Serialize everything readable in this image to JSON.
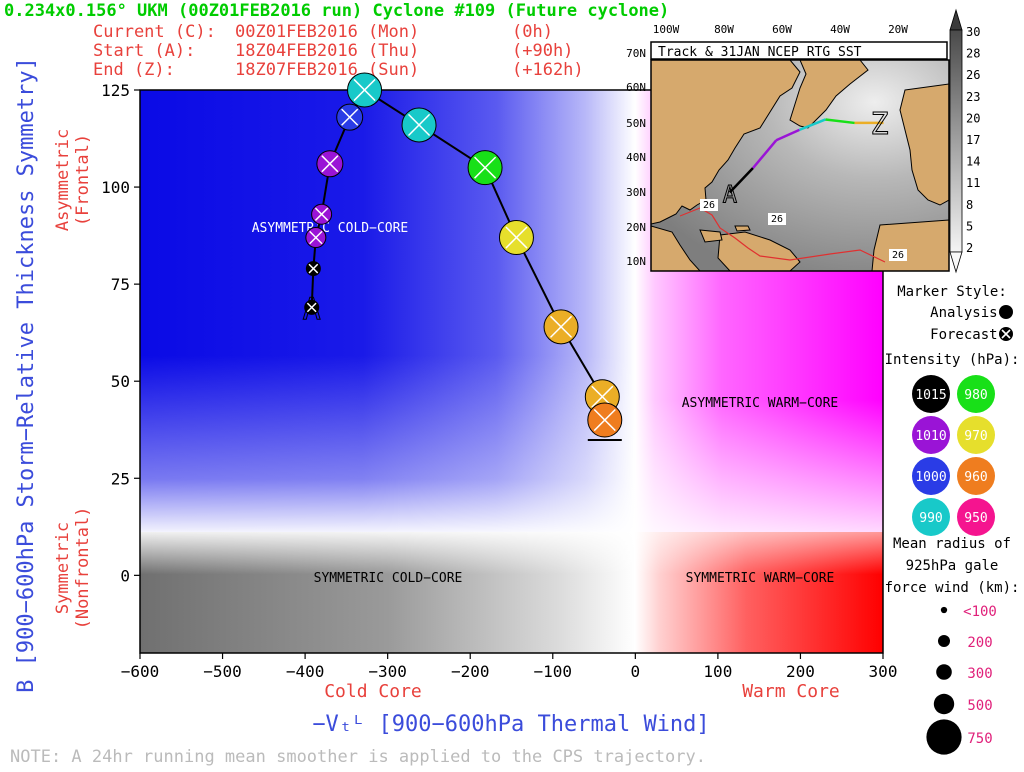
{
  "header": {
    "title": "0.234x0.156° UKM (00Z01FEB2016 run) Cyclone #109 (Future cyclone)",
    "rows": [
      {
        "label": "Current (C):",
        "time": "00Z01FEB2016 (Mon)",
        "offset": "(0h)"
      },
      {
        "label": "Start (A):",
        "time": "18Z04FEB2016 (Thu)",
        "offset": "(+90h)"
      },
      {
        "label": "End (Z):",
        "time": "18Z07FEB2016 (Sun)",
        "offset": "(+162h)"
      }
    ]
  },
  "colors": {
    "title": "#00cc00",
    "header_rows": "#e8413c",
    "axis_label": "#3b4cdb",
    "region_label": "#e8413c",
    "note": "#bbbbbb"
  },
  "chart_data": {
    "type": "scatter",
    "xlabel": "−Vₜᴸ [900−600hPa Thermal Wind]",
    "ylabel": "B [900−600hPa Storm−Relative Thickness Symmetry]",
    "xlim": [
      -600,
      300
    ],
    "ylim": [
      -20,
      125
    ],
    "xticks": [
      -600,
      -500,
      -400,
      -300,
      -200,
      -100,
      0,
      100,
      200,
      300
    ],
    "yticks": [
      0,
      25,
      50,
      75,
      100,
      125
    ],
    "x_side_labels": [
      "Cold Core",
      "Warm Core"
    ],
    "y_side_labels": [
      "Asymmetric (Frontal)",
      "Symmetric (Nonfrontal)"
    ],
    "regions": [
      "ASYMMETRIC COLD−CORE",
      "ASYMMETRIC WARM−CORE",
      "SYMMETRIC COLD−CORE",
      "SYMMETRIC WARM−CORE"
    ],
    "track": [
      {
        "x": -392,
        "y": 69,
        "pressure": 1015,
        "size": 100,
        "type": "forecast"
      },
      {
        "x": -390,
        "y": 79,
        "pressure": 1015,
        "size": 100,
        "type": "forecast"
      },
      {
        "x": -387,
        "y": 87,
        "pressure": 1010,
        "size": 200,
        "type": "forecast"
      },
      {
        "x": -380,
        "y": 93,
        "pressure": 1010,
        "size": 200,
        "type": "forecast"
      },
      {
        "x": -370,
        "y": 106,
        "pressure": 1010,
        "size": 300,
        "type": "forecast"
      },
      {
        "x": -346,
        "y": 118,
        "pressure": 1000,
        "size": 300,
        "type": "forecast"
      },
      {
        "x": -328,
        "y": 125,
        "pressure": 990,
        "size": 500,
        "type": "forecast"
      },
      {
        "x": -262,
        "y": 116,
        "pressure": 990,
        "size": 500,
        "type": "forecast"
      },
      {
        "x": -182,
        "y": 105,
        "pressure": 980,
        "size": 500,
        "type": "forecast"
      },
      {
        "x": -144,
        "y": 87,
        "pressure": 970,
        "size": 500,
        "type": "forecast"
      },
      {
        "x": -90,
        "y": 64,
        "pressure": 965,
        "size": 500,
        "type": "forecast"
      },
      {
        "x": -40,
        "y": 46,
        "pressure": 965,
        "size": 500,
        "type": "forecast"
      },
      {
        "x": -37,
        "y": 40,
        "pressure": 960,
        "size": 500,
        "type": "forecast"
      }
    ],
    "start_label": "A",
    "end_label": "Z"
  },
  "inset_map": {
    "title": "Track & 31JAN NCEP RTG SST",
    "lon_labels": [
      "100W",
      "80W",
      "60W",
      "40W",
      "20W"
    ],
    "lat_labels": [
      "70N",
      "60N",
      "50N",
      "40N",
      "30N",
      "20N",
      "10N"
    ],
    "sst_labels": [
      "26",
      "26",
      "26"
    ],
    "track": [
      {
        "lon": -78,
        "lat": 31
      },
      {
        "lon": -70,
        "lat": 38
      },
      {
        "lon": -62,
        "lat": 46
      },
      {
        "lon": -54,
        "lat": 49
      },
      {
        "lon": -45,
        "lat": 52
      },
      {
        "lon": -35,
        "lat": 51
      },
      {
        "lon": -25,
        "lat": 51
      }
    ]
  },
  "colorbar": {
    "ticks": [
      "30",
      "28",
      "26",
      "23",
      "20",
      "17",
      "14",
      "11",
      "8",
      "5",
      "2"
    ]
  },
  "legend": {
    "marker_style_title": "Marker Style:",
    "analysis_label": "Analysis:",
    "forecast_label": "Forecast:",
    "intensity_title": "Intensity (hPa):",
    "intensity": [
      {
        "value": "1015",
        "color": "#000000",
        "text_color": "#ffffff"
      },
      {
        "value": "980",
        "color": "#18e018",
        "text_color": "#ffffff"
      },
      {
        "value": "1010",
        "color": "#9a14d6",
        "text_color": "#ffffff"
      },
      {
        "value": "970",
        "color": "#e6df2c",
        "text_color": "#ffffff"
      },
      {
        "value": "1000",
        "color": "#2a3ce6",
        "text_color": "#ffffff"
      },
      {
        "value": "960",
        "color": "#ef7d1f",
        "text_color": "#ffffff"
      },
      {
        "value": "990",
        "color": "#18c9c9",
        "text_color": "#ffffff"
      },
      {
        "value": "950",
        "color": "#f5148f",
        "text_color": "#ffffff"
      }
    ],
    "radius_title_lines": [
      "Mean radius of",
      "925hPa gale",
      "force wind (km):"
    ],
    "radius_items": [
      {
        "label": "<100",
        "size": 100
      },
      {
        "label": "200",
        "size": 200
      },
      {
        "label": "300",
        "size": 300
      },
      {
        "label": "500",
        "size": 500
      },
      {
        "label": "750",
        "size": 750
      }
    ]
  },
  "note": "NOTE:  A 24hr running mean smoother is applied to the CPS trajectory."
}
